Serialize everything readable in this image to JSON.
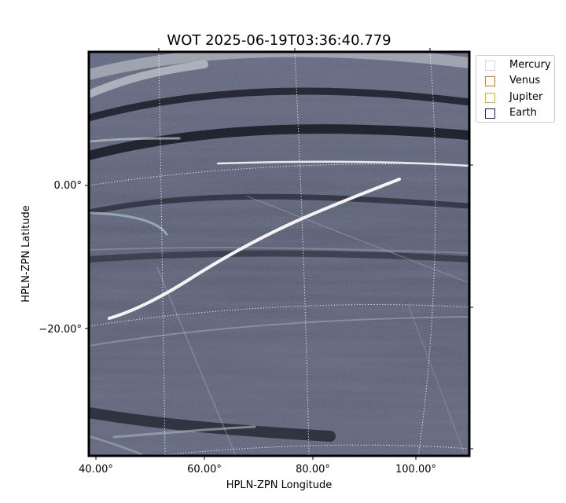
{
  "chart_data": {
    "type": "image",
    "title": "WOT 2025-06-19T03:36:40.779",
    "xlabel": "HPLN-ZPN Longitude",
    "ylabel": "HPLN-ZPN Latitude",
    "x_ticks": [
      "40.00°",
      "60.00°",
      "80.00°",
      "100.00°"
    ],
    "y_ticks": [
      "0.00°",
      "−20.00°"
    ],
    "grid": true,
    "grid_style": "dotted",
    "colormap": "bone",
    "legend_position": "upper-right-outside",
    "legend": [
      {
        "name": "Mercury",
        "color": "#d8d8d8"
      },
      {
        "name": "Venus",
        "color": "#e07a2a"
      },
      {
        "name": "Jupiter",
        "color": "#e0b020"
      },
      {
        "name": "Earth",
        "color": "#1a1a6a"
      }
    ]
  }
}
